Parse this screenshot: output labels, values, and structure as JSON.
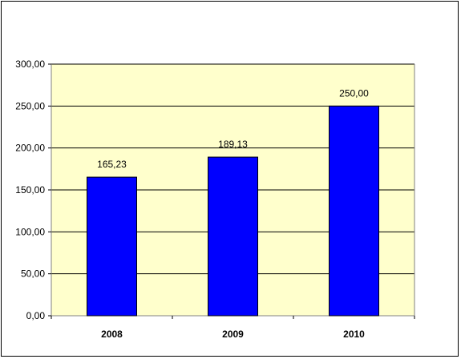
{
  "chart_data": {
    "type": "bar",
    "title": "",
    "xlabel": "",
    "ylabel": "",
    "categories": [
      "2008",
      "2009",
      "2010"
    ],
    "values": [
      165.23,
      189.13,
      250.0
    ],
    "value_labels": [
      "165,23",
      "189,13",
      "250,00"
    ],
    "ylim": [
      0,
      300
    ],
    "yticks": [
      0,
      50,
      100,
      150,
      200,
      250,
      300
    ],
    "ytick_labels": [
      "0,00",
      "50,00",
      "100,00",
      "150,00",
      "200,00",
      "250,00",
      "300,00"
    ],
    "grid": true,
    "legend": "none",
    "colors": {
      "bar": "#0000FF",
      "bar_outline": "#000000",
      "plot_background": "#FFFFCC",
      "gridline": "#000000"
    }
  }
}
